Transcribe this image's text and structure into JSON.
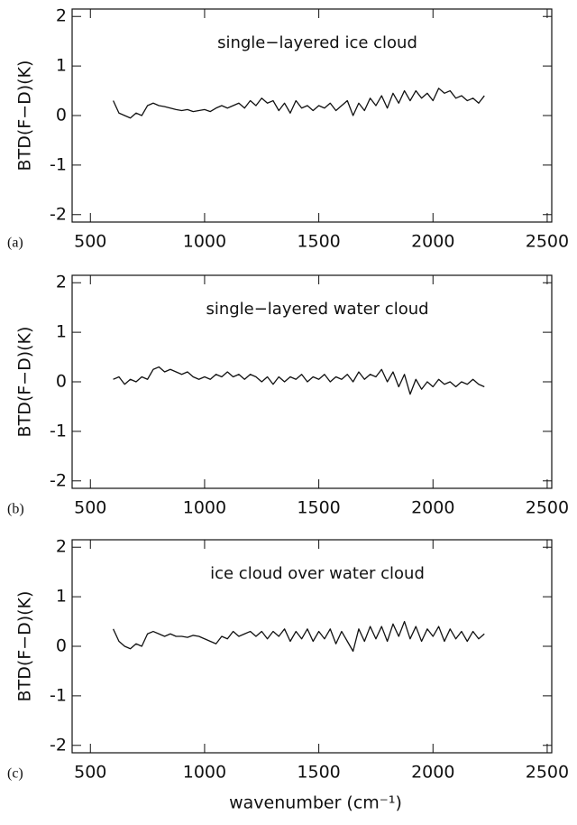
{
  "chart_data": [
    {
      "type": "line",
      "panel_label": "(a)",
      "annotation": "single−layered ice cloud",
      "y_label": "BTD(F−D)(K)",
      "xlim": [
        420,
        2520
      ],
      "xticks": [
        500,
        1000,
        1500,
        2000,
        2500
      ],
      "ylim": [
        -2.15,
        2.15
      ],
      "yticks": [
        -2,
        -1,
        0,
        1,
        2
      ],
      "series": [
        {
          "color": "#111111",
          "x": [
            600,
            625,
            650,
            675,
            700,
            725,
            750,
            775,
            800,
            825,
            850,
            875,
            900,
            925,
            950,
            975,
            1000,
            1025,
            1050,
            1075,
            1100,
            1125,
            1150,
            1175,
            1200,
            1225,
            1250,
            1275,
            1300,
            1325,
            1350,
            1375,
            1400,
            1425,
            1450,
            1475,
            1500,
            1525,
            1550,
            1575,
            1600,
            1625,
            1650,
            1675,
            1700,
            1725,
            1750,
            1775,
            1800,
            1825,
            1850,
            1875,
            1900,
            1925,
            1950,
            1975,
            2000,
            2025,
            2050,
            2075,
            2100,
            2125,
            2150,
            2175,
            2200,
            2225
          ],
          "values": [
            0.3,
            0.05,
            0.0,
            -0.05,
            0.05,
            0.0,
            0.2,
            0.25,
            0.2,
            0.18,
            0.15,
            0.12,
            0.1,
            0.12,
            0.08,
            0.1,
            0.12,
            0.08,
            0.15,
            0.2,
            0.15,
            0.2,
            0.25,
            0.15,
            0.3,
            0.2,
            0.35,
            0.25,
            0.3,
            0.1,
            0.25,
            0.05,
            0.3,
            0.15,
            0.2,
            0.1,
            0.2,
            0.15,
            0.25,
            0.1,
            0.2,
            0.3,
            0.0,
            0.25,
            0.1,
            0.35,
            0.2,
            0.4,
            0.15,
            0.45,
            0.25,
            0.5,
            0.3,
            0.5,
            0.35,
            0.45,
            0.3,
            0.55,
            0.45,
            0.5,
            0.35,
            0.4,
            0.3,
            0.35,
            0.25,
            0.4
          ]
        }
      ]
    },
    {
      "type": "line",
      "panel_label": "(b)",
      "annotation": "single−layered water cloud",
      "y_label": "BTD(F−D)(K)",
      "xlim": [
        420,
        2520
      ],
      "xticks": [
        500,
        1000,
        1500,
        2000,
        2500
      ],
      "ylim": [
        -2.15,
        2.15
      ],
      "yticks": [
        -2,
        -1,
        0,
        1,
        2
      ],
      "series": [
        {
          "color": "#111111",
          "x": [
            600,
            625,
            650,
            675,
            700,
            725,
            750,
            775,
            800,
            825,
            850,
            875,
            900,
            925,
            950,
            975,
            1000,
            1025,
            1050,
            1075,
            1100,
            1125,
            1150,
            1175,
            1200,
            1225,
            1250,
            1275,
            1300,
            1325,
            1350,
            1375,
            1400,
            1425,
            1450,
            1475,
            1500,
            1525,
            1550,
            1575,
            1600,
            1625,
            1650,
            1675,
            1700,
            1725,
            1750,
            1775,
            1800,
            1825,
            1850,
            1875,
            1900,
            1925,
            1950,
            1975,
            2000,
            2025,
            2050,
            2075,
            2100,
            2125,
            2150,
            2175,
            2200,
            2225
          ],
          "values": [
            0.05,
            0.1,
            -0.05,
            0.05,
            0.0,
            0.1,
            0.05,
            0.25,
            0.3,
            0.2,
            0.25,
            0.2,
            0.15,
            0.2,
            0.1,
            0.05,
            0.1,
            0.05,
            0.15,
            0.1,
            0.2,
            0.1,
            0.15,
            0.05,
            0.15,
            0.1,
            0.0,
            0.1,
            -0.05,
            0.1,
            0.0,
            0.1,
            0.05,
            0.15,
            0.0,
            0.1,
            0.05,
            0.15,
            0.0,
            0.1,
            0.05,
            0.15,
            0.0,
            0.2,
            0.05,
            0.15,
            0.1,
            0.25,
            0.0,
            0.2,
            -0.1,
            0.15,
            -0.25,
            0.05,
            -0.15,
            0.0,
            -0.1,
            0.05,
            -0.05,
            0.0,
            -0.1,
            0.0,
            -0.05,
            0.05,
            -0.05,
            -0.1
          ]
        }
      ]
    },
    {
      "type": "line",
      "panel_label": "(c)",
      "annotation": "ice cloud over water cloud",
      "y_label": "BTD(F−D)(K)",
      "x_label": "wavenumber (cm⁻¹)",
      "xlim": [
        420,
        2520
      ],
      "xticks": [
        500,
        1000,
        1500,
        2000,
        2500
      ],
      "ylim": [
        -2.15,
        2.15
      ],
      "yticks": [
        -2,
        -1,
        0,
        1,
        2
      ],
      "series": [
        {
          "color": "#111111",
          "x": [
            600,
            625,
            650,
            675,
            700,
            725,
            750,
            775,
            800,
            825,
            850,
            875,
            900,
            925,
            950,
            975,
            1000,
            1025,
            1050,
            1075,
            1100,
            1125,
            1150,
            1175,
            1200,
            1225,
            1250,
            1275,
            1300,
            1325,
            1350,
            1375,
            1400,
            1425,
            1450,
            1475,
            1500,
            1525,
            1550,
            1575,
            1600,
            1625,
            1650,
            1675,
            1700,
            1725,
            1750,
            1775,
            1800,
            1825,
            1850,
            1875,
            1900,
            1925,
            1950,
            1975,
            2000,
            2025,
            2050,
            2075,
            2100,
            2125,
            2150,
            2175,
            2200,
            2225
          ],
          "values": [
            0.35,
            0.1,
            0.0,
            -0.05,
            0.05,
            0.0,
            0.25,
            0.3,
            0.25,
            0.2,
            0.25,
            0.2,
            0.2,
            0.18,
            0.22,
            0.2,
            0.15,
            0.1,
            0.05,
            0.2,
            0.15,
            0.3,
            0.2,
            0.25,
            0.3,
            0.2,
            0.3,
            0.15,
            0.3,
            0.2,
            0.35,
            0.1,
            0.3,
            0.15,
            0.35,
            0.1,
            0.3,
            0.15,
            0.35,
            0.05,
            0.3,
            0.1,
            -0.1,
            0.35,
            0.1,
            0.4,
            0.15,
            0.4,
            0.1,
            0.45,
            0.2,
            0.5,
            0.15,
            0.4,
            0.1,
            0.35,
            0.2,
            0.4,
            0.1,
            0.35,
            0.15,
            0.3,
            0.1,
            0.3,
            0.15,
            0.25
          ]
        }
      ]
    }
  ]
}
